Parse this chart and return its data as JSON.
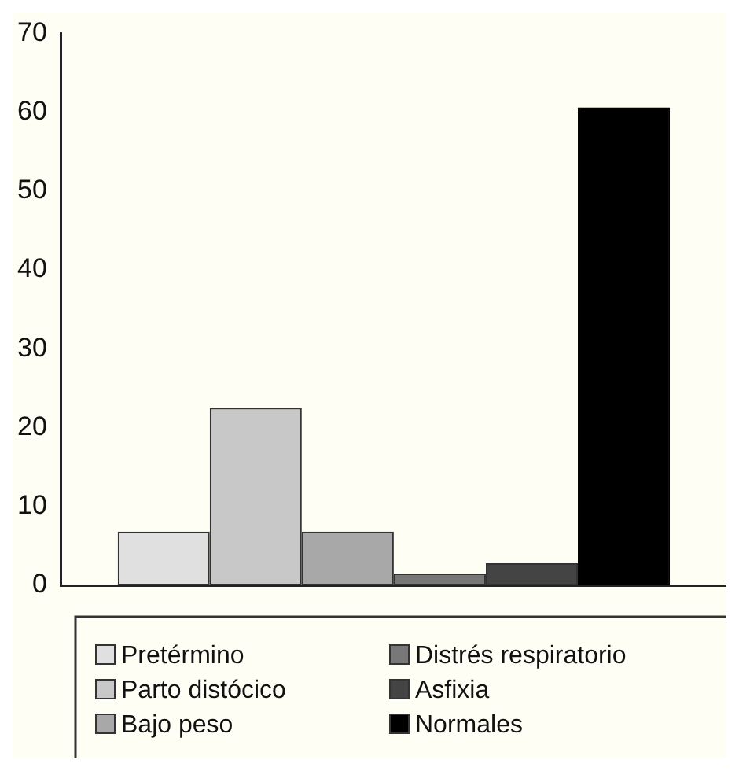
{
  "chart_data": {
    "type": "bar",
    "categories": [
      null
    ],
    "series": [
      {
        "name": "Pretérmino",
        "color": "#e0e0e0",
        "values": [
          6.8
        ]
      },
      {
        "name": "Parto distócico",
        "color": "#c8c8c8",
        "values": [
          22.5
        ]
      },
      {
        "name": "Bajo peso",
        "color": "#a8a8a8",
        "values": [
          6.8
        ]
      },
      {
        "name": "Distrés respiratorio",
        "color": "#787878",
        "values": [
          1.5
        ]
      },
      {
        "name": "Asfixia",
        "color": "#444444",
        "values": [
          2.8
        ]
      },
      {
        "name": "Normales",
        "color": "#000000",
        "values": [
          60.6
        ]
      }
    ],
    "ylim": [
      0,
      70
    ],
    "yticks": [
      0,
      10,
      20,
      30,
      40,
      50,
      60,
      70
    ],
    "grid": false,
    "legend": "bottom"
  }
}
